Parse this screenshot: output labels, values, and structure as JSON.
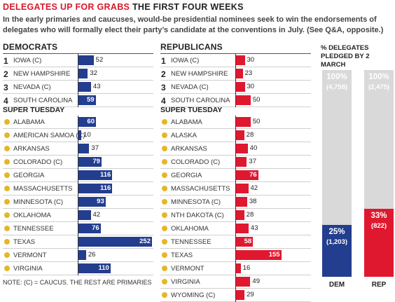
{
  "header": {
    "title_red": "DELEGATES UP FOR GRABS",
    "title_black": "THE FIRST FOUR WEEKS",
    "intro": "In the early primaries and caucuses, would-be presidential nominees seek to win the endorsements of delegates who will formally elect their party’s candidate at the conventions in July. (See Q&A, opposite.)"
  },
  "democrats": {
    "heading": "DEMOCRATS",
    "super_tuesday": "SUPER TUESDAY",
    "early": [
      {
        "n": "1",
        "label": "IOWA (C)",
        "value": 52
      },
      {
        "n": "2",
        "label": "NEW HAMPSHIRE",
        "value": 32
      },
      {
        "n": "3",
        "label": "NEVADA (C)",
        "value": 43
      },
      {
        "n": "4",
        "label": "SOUTH CAROLINA",
        "value": 59
      }
    ],
    "super": [
      {
        "label": "ALABAMA",
        "value": 60
      },
      {
        "label": "AMERICAN SAMOA (C)",
        "value": 10
      },
      {
        "label": "ARKANSAS",
        "value": 37
      },
      {
        "label": "COLORADO (C)",
        "value": 79
      },
      {
        "label": "GEORGIA",
        "value": 116
      },
      {
        "label": "MASSACHUSETTS",
        "value": 116
      },
      {
        "label": "MINNESOTA (C)",
        "value": 93
      },
      {
        "label": "OKLAHOMA",
        "value": 42
      },
      {
        "label": "TENNESSEE",
        "value": 76
      },
      {
        "label": "TEXAS",
        "value": 252
      },
      {
        "label": "VERMONT",
        "value": 26
      },
      {
        "label": "VIRGINIA",
        "value": 110
      }
    ]
  },
  "republicans": {
    "heading": "REPUBLICANS",
    "super_tuesday": "SUPER TUESDAY",
    "early": [
      {
        "n": "1",
        "label": "IOWA (C)",
        "value": 30
      },
      {
        "n": "2",
        "label": "NEW HAMPSHIRE",
        "value": 23
      },
      {
        "n": "3",
        "label": "NEVADA (C)",
        "value": 30
      },
      {
        "n": "4",
        "label": "SOUTH CAROLINA",
        "value": 50
      }
    ],
    "super": [
      {
        "label": "ALABAMA",
        "value": 50
      },
      {
        "label": "ALASKA",
        "value": 28
      },
      {
        "label": "ARKANSAS",
        "value": 40
      },
      {
        "label": "COLORADO (C)",
        "value": 37
      },
      {
        "label": "GEORGIA",
        "value": 76
      },
      {
        "label": "MASSACHUSETTS",
        "value": 42
      },
      {
        "label": "MINNESOTA (C)",
        "value": 38
      },
      {
        "label": "NTH DAKOTA (C)",
        "value": 28
      },
      {
        "label": "OKLAHOMA",
        "value": 43
      },
      {
        "label": "TENNESSEE",
        "value": 58
      },
      {
        "label": "TEXAS",
        "value": 155
      },
      {
        "label": "VERMONT",
        "value": 16
      },
      {
        "label": "VIRGINIA",
        "value": 49
      },
      {
        "label": "WYOMING (C)",
        "value": 29
      }
    ]
  },
  "note": "NOTE: (C) = CAUCUS. THE REST ARE PRIMARIES",
  "chart_data": [
    {
      "type": "bar",
      "title": "DEMOCRATS",
      "categories": [
        "IOWA (C)",
        "NEW HAMPSHIRE",
        "NEVADA (C)",
        "SOUTH CAROLINA",
        "ALABAMA",
        "AMERICAN SAMOA (C)",
        "ARKANSAS",
        "COLORADO (C)",
        "GEORGIA",
        "MASSACHUSETTS",
        "MINNESOTA (C)",
        "OKLAHOMA",
        "TENNESSEE",
        "TEXAS",
        "VERMONT",
        "VIRGINIA"
      ],
      "values": [
        52,
        32,
        43,
        59,
        60,
        10,
        37,
        79,
        116,
        116,
        93,
        42,
        76,
        252,
        26,
        110
      ],
      "orientation": "horizontal",
      "color": "#233d8f"
    },
    {
      "type": "bar",
      "title": "REPUBLICANS",
      "categories": [
        "IOWA (C)",
        "NEW HAMPSHIRE",
        "NEVADA (C)",
        "SOUTH CAROLINA",
        "ALABAMA",
        "ALASKA",
        "ARKANSAS",
        "COLORADO (C)",
        "GEORGIA",
        "MASSACHUSETTS",
        "MINNESOTA (C)",
        "NTH DAKOTA (C)",
        "OKLAHOMA",
        "TENNESSEE",
        "TEXAS",
        "VERMONT",
        "VIRGINIA",
        "WYOMING (C)"
      ],
      "values": [
        30,
        23,
        30,
        50,
        50,
        28,
        40,
        37,
        76,
        42,
        38,
        28,
        43,
        58,
        155,
        16,
        49,
        29
      ],
      "orientation": "horizontal",
      "color": "#e0182f"
    },
    {
      "type": "bar",
      "title": "% DELEGATES PLEDGED BY 2 MARCH",
      "categories": [
        "DEM",
        "REP"
      ],
      "series": [
        {
          "values": [
            25,
            33
          ]
        }
      ],
      "labels": [
        {
          "pct": "25%",
          "count": "(1,203)",
          "total_pct": "100%",
          "total": "(4,758)"
        },
        {
          "pct": "33%",
          "count": "(822)",
          "total_pct": "100%",
          "total": "(2,475)"
        }
      ],
      "ylim": [
        0,
        100
      ],
      "colors": {
        "DEM": "#233d8f",
        "REP": "#e0182f",
        "background": "#d9d9d9"
      }
    }
  ]
}
